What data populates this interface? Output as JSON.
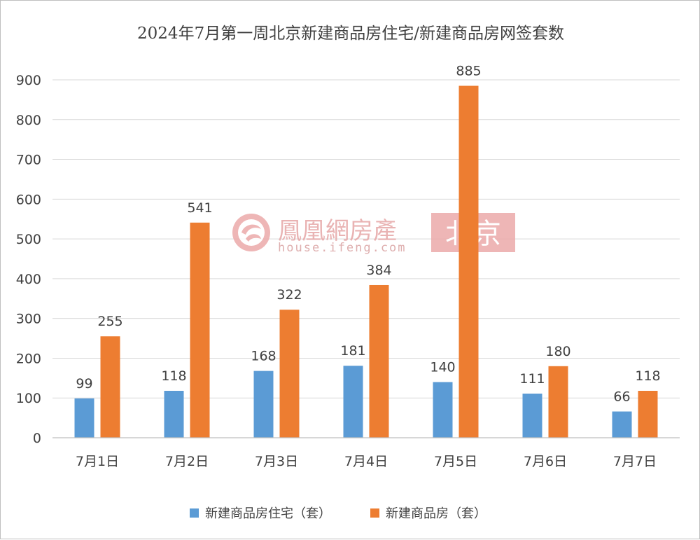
{
  "chart_data": {
    "type": "bar",
    "title": "2024年7月第一周北京新建商品房住宅/新建商品房网签套数",
    "categories": [
      "7月1日",
      "7月2日",
      "7月3日",
      "7月4日",
      "7月5日",
      "7月6日",
      "7月7日"
    ],
    "series": [
      {
        "name": "新建商品房住宅（套）",
        "values": [
          99,
          118,
          168,
          181,
          140,
          111,
          66
        ],
        "color": "#5b9bd5"
      },
      {
        "name": "新建商品房（套）",
        "values": [
          255,
          541,
          322,
          384,
          885,
          180,
          118
        ],
        "color": "#ed7d31"
      }
    ],
    "ylim": [
      0,
      900
    ],
    "yticks": [
      0,
      100,
      200,
      300,
      400,
      500,
      600,
      700,
      800,
      900
    ],
    "grid": true,
    "legend": "bottom",
    "data_labels": true
  },
  "watermark": {
    "brand": "鳳凰網房產",
    "url": "house.ifeng.com",
    "city": "北京",
    "accent": "#e8a0a0",
    "icon": "phoenix-logo-icon"
  }
}
